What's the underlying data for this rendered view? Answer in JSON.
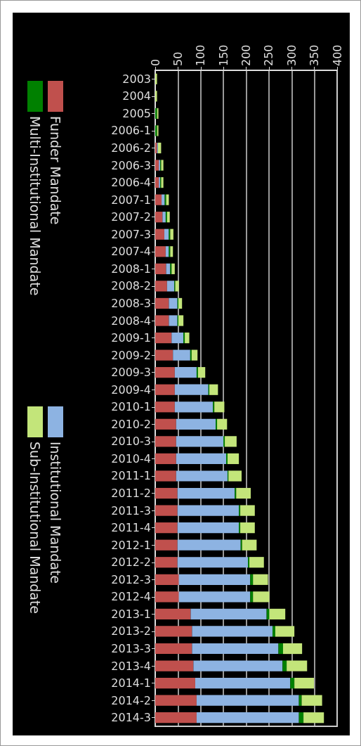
{
  "chart_data": {
    "type": "bar",
    "orientation": "horizontal",
    "stacked": true,
    "categories": [
      "2003",
      "2004",
      "2005",
      "2006-1",
      "2006-2",
      "2006-3",
      "2006-4",
      "2007-1",
      "2007-2",
      "2007-3",
      "2007-4",
      "2008-1",
      "2008-2",
      "2008-3",
      "2008-4",
      "2009-1",
      "2009-2",
      "2009-3",
      "2009-4",
      "2010-1",
      "2010-2",
      "2010-3",
      "2010-4",
      "2011-1",
      "2011-2",
      "2011-3",
      "2011-4",
      "2012-1",
      "2012-2",
      "2012-3",
      "2012-4",
      "2013-1",
      "2013-2",
      "2013-3",
      "2013-4",
      "2014-1",
      "2014-2",
      "2014-3"
    ],
    "series": [
      {
        "name": "Funder Mandate",
        "color": "#c0504d",
        "values": [
          0,
          0,
          0,
          0,
          4,
          8,
          8,
          14,
          16,
          20,
          23,
          24,
          26,
          30,
          30,
          36,
          39,
          43,
          43,
          43,
          46,
          46,
          46,
          46,
          49,
          49,
          49,
          49,
          49,
          52,
          52,
          78,
          81,
          81,
          84,
          88,
          91,
          91
        ]
      },
      {
        "name": "Institutional Mandate",
        "color": "#8db3e2",
        "values": [
          0,
          0,
          0,
          0,
          2,
          3,
          3,
          7,
          7,
          10,
          7,
          9,
          16,
          19,
          19,
          26,
          38,
          48,
          74,
          84,
          87,
          104,
          110,
          113,
          126,
          135,
          135,
          139,
          155,
          157,
          157,
          167,
          177,
          190,
          196,
          209,
          225,
          225
        ]
      },
      {
        "name": "Multi-Institutional Mandate",
        "color": "#008000",
        "values": [
          0,
          0,
          4,
          4,
          null,
          2,
          2,
          3,
          3,
          3,
          3,
          3,
          2,
          2,
          2,
          3,
          3,
          3,
          2,
          3,
          3,
          3,
          3,
          2,
          3,
          3,
          3,
          3,
          3,
          6,
          6,
          6,
          6,
          10,
          9,
          9,
          6,
          10
        ]
      },
      {
        "name": "Sub-Institutional Mandate",
        "color": "#c3e57a",
        "values": [
          4,
          4,
          3,
          3,
          7,
          5,
          5,
          6,
          6,
          7,
          6,
          7,
          8,
          8,
          11,
          10,
          13,
          16,
          19,
          22,
          22,
          26,
          25,
          29,
          32,
          32,
          32,
          32,
          32,
          33,
          36,
          35,
          42,
          42,
          45,
          43,
          45,
          45
        ]
      }
    ],
    "xlim": [
      0,
      400
    ],
    "xticks": [
      0,
      50,
      100,
      150,
      200,
      250,
      300,
      350,
      400
    ],
    "grid": "x",
    "legend": "left"
  }
}
